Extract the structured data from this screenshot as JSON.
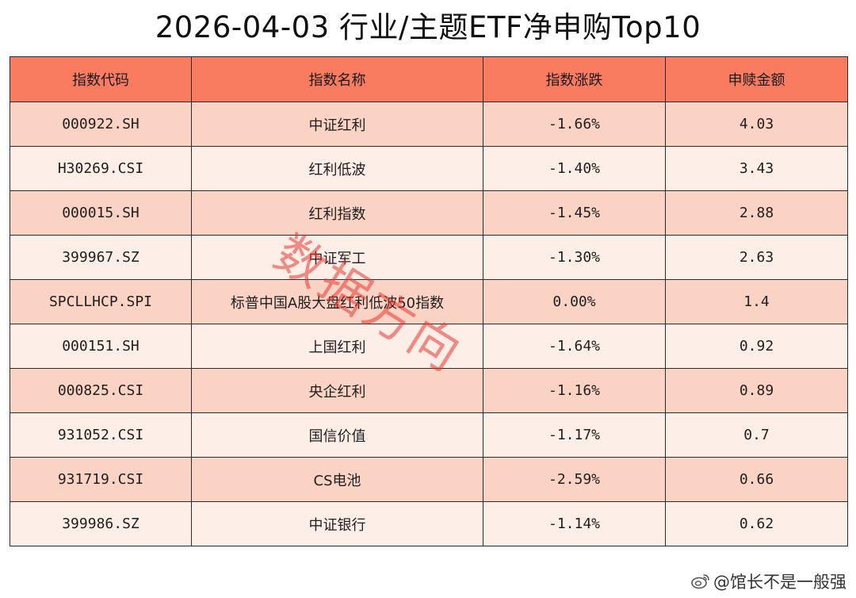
{
  "title": "2026-04-03 行业/主题ETF净申购Top10",
  "table": {
    "headers": [
      "指数代码",
      "指数名称",
      "指数涨跌",
      "申赎金额"
    ],
    "rows": [
      {
        "code": "000922.SH",
        "name": "中证红利",
        "change": "-1.66%",
        "amount": "4.03"
      },
      {
        "code": "H30269.CSI",
        "name": "红利低波",
        "change": "-1.40%",
        "amount": "3.43"
      },
      {
        "code": "000015.SH",
        "name": "红利指数",
        "change": "-1.45%",
        "amount": "2.88"
      },
      {
        "code": "399967.SZ",
        "name": "中证军工",
        "change": "-1.30%",
        "amount": "2.63"
      },
      {
        "code": "SPCLLHCP.SPI",
        "name": "标普中国A股大盘红利低波50指数",
        "change": "0.00%",
        "amount": "1.4"
      },
      {
        "code": "000151.SH",
        "name": "上国红利",
        "change": "-1.64%",
        "amount": "0.92"
      },
      {
        "code": "000825.CSI",
        "name": "央企红利",
        "change": "-1.16%",
        "amount": "0.89"
      },
      {
        "code": "931052.CSI",
        "name": "国信价值",
        "change": "-1.17%",
        "amount": "0.7"
      },
      {
        "code": "931719.CSI",
        "name": "CS电池",
        "change": "-2.59%",
        "amount": "0.66"
      },
      {
        "code": "399986.SZ",
        "name": "中证银行",
        "change": "-1.14%",
        "amount": "0.62"
      }
    ]
  },
  "watermark": "数据方向",
  "credit": {
    "icon": "weibo-icon",
    "text": "@馆长不是一般强"
  },
  "colors": {
    "header_bg": "#f97c61",
    "row_odd_bg": "#fbd3c4",
    "row_even_bg": "#fdeee8",
    "watermark": "#e6372d"
  }
}
